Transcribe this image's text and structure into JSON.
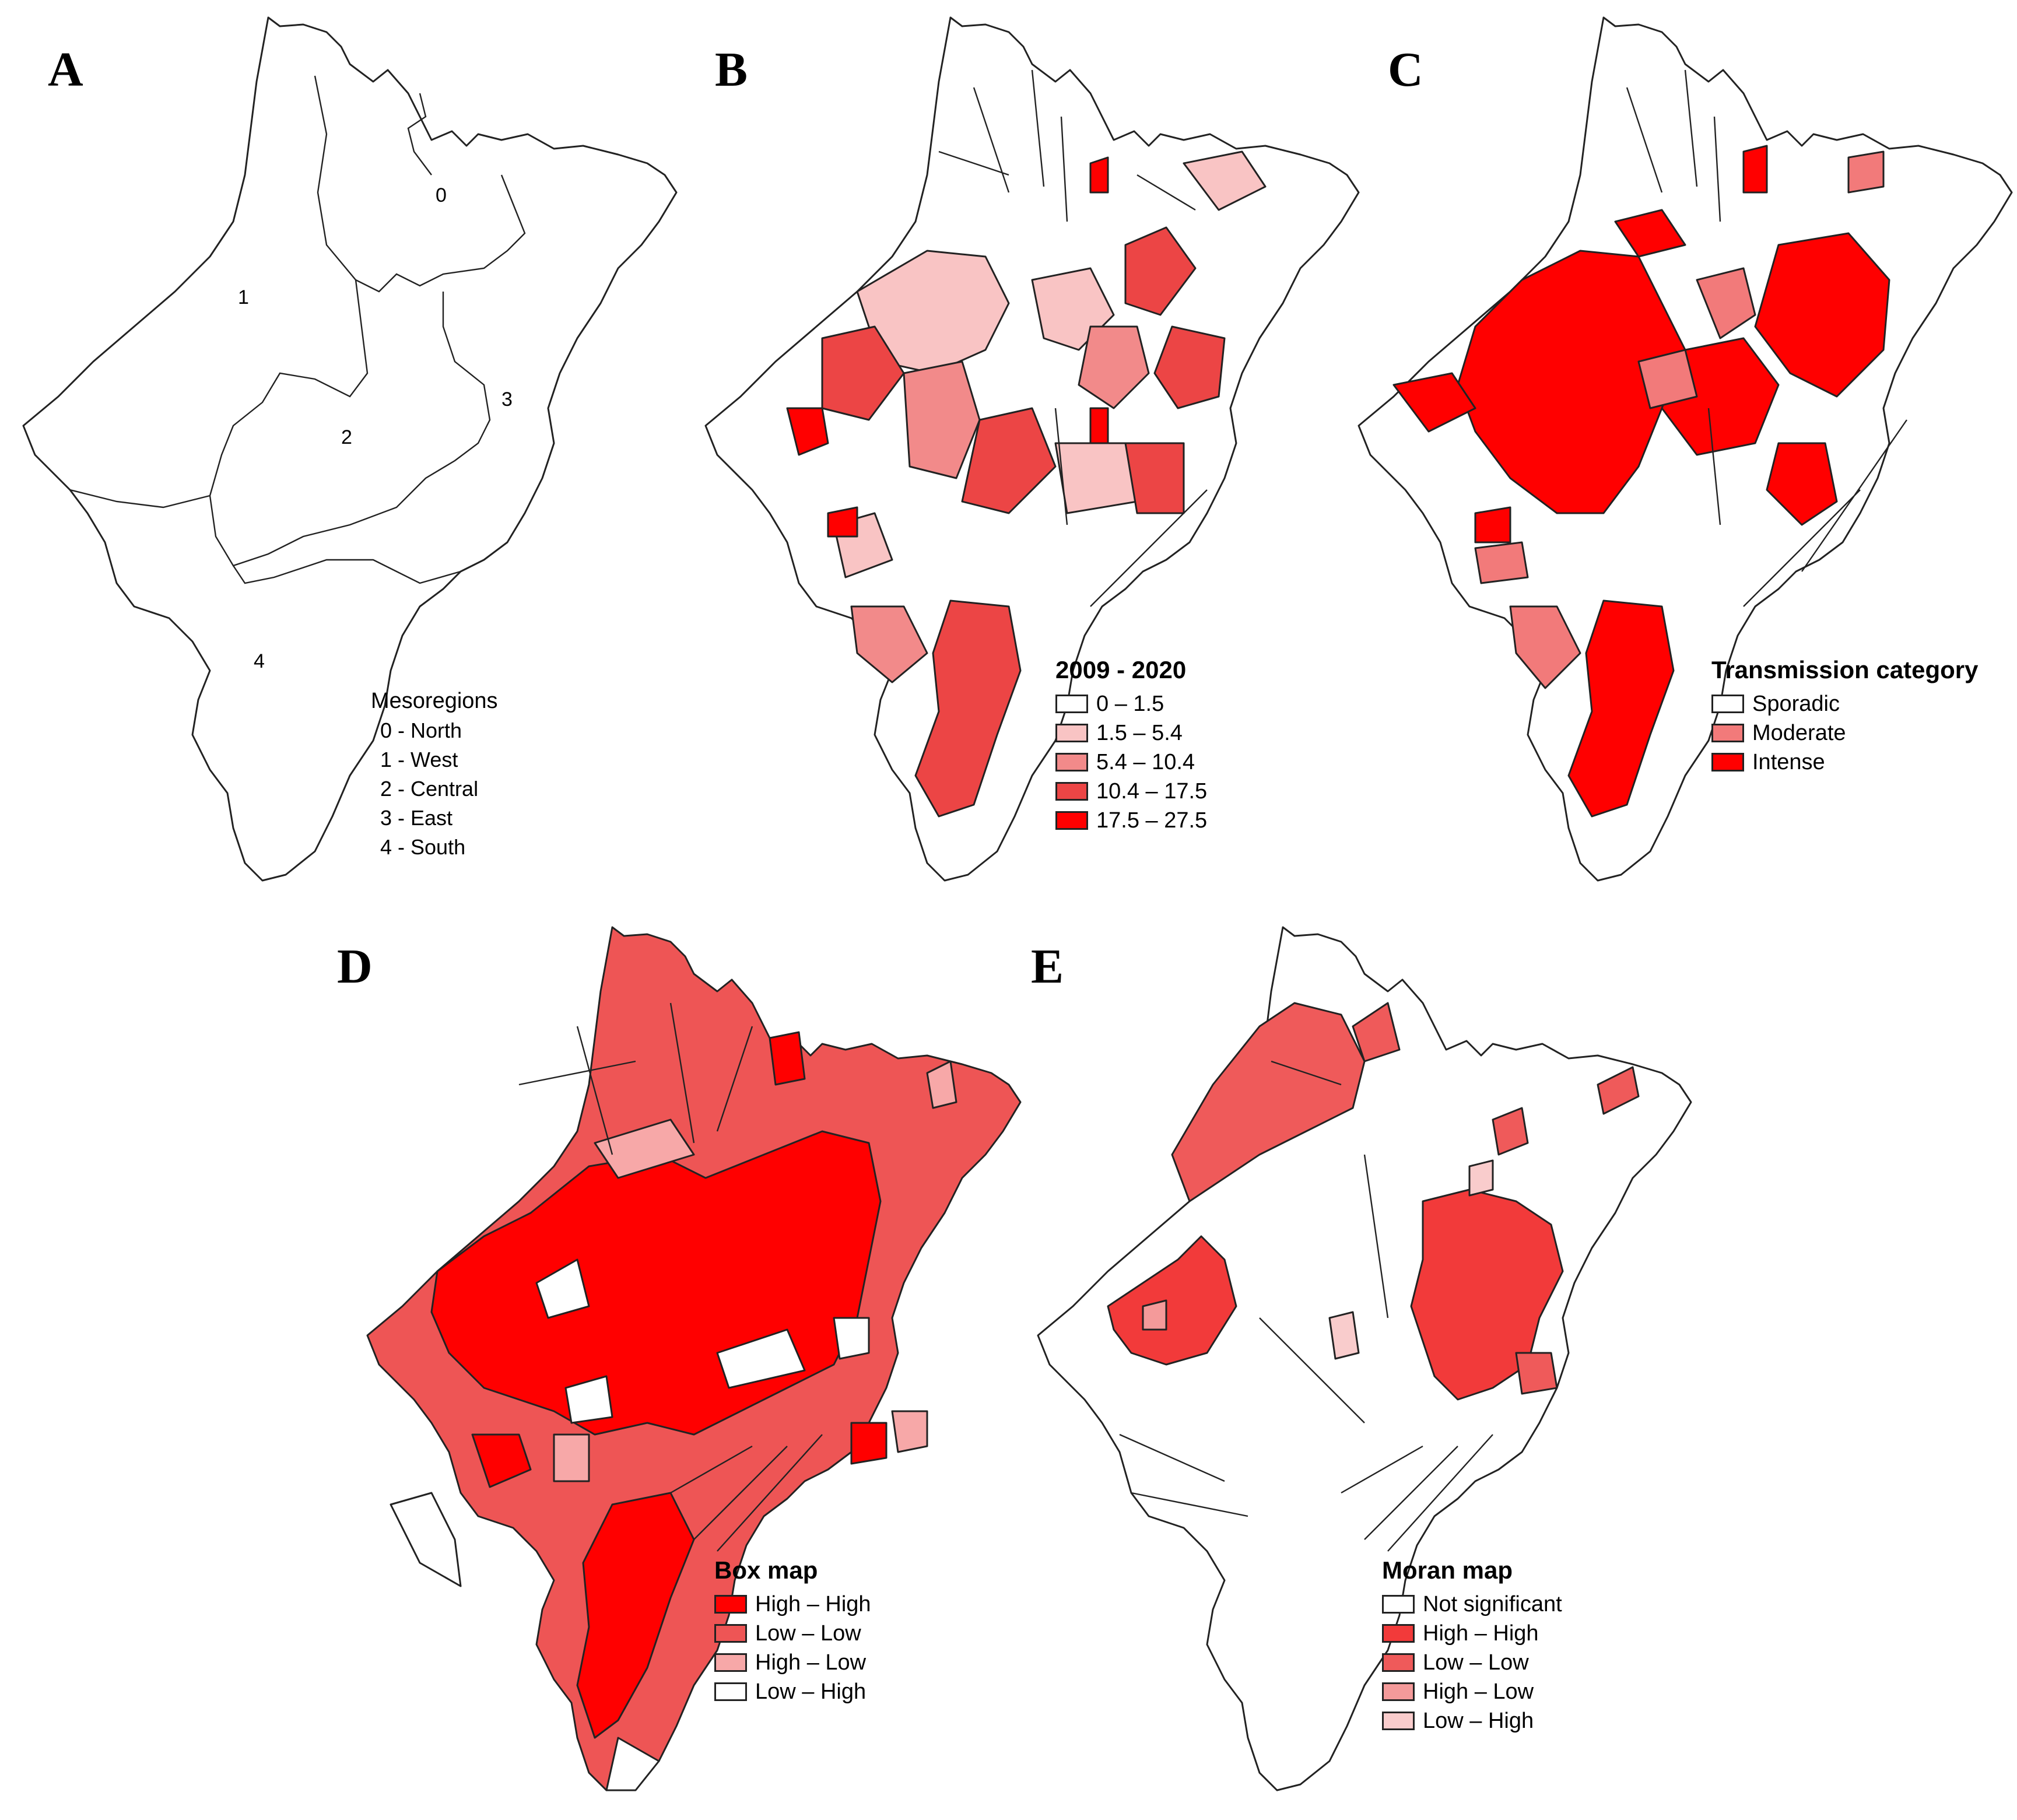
{
  "panels": {
    "a": {
      "letter": "A",
      "region_numbers": [
        "0",
        "1",
        "2",
        "3",
        "4"
      ],
      "legend": {
        "title": "Mesoregions",
        "items": [
          "0 - North",
          "1 - West",
          "2 - Central",
          "3 - East",
          "4 - South"
        ]
      }
    },
    "b": {
      "letter": "B",
      "legend": {
        "title": "2009 - 2020",
        "items": [
          {
            "label": "0 –  1.5",
            "color": "#ffffff"
          },
          {
            "label": "1.5 –  5.4",
            "color": "#f9c4c4"
          },
          {
            "label": "5.4 –  10.4",
            "color": "#f28a8a"
          },
          {
            "label": "10.4 –  17.5",
            "color": "#ec4545"
          },
          {
            "label": "17.5 –  27.5",
            "color": "#ff0000"
          }
        ]
      }
    },
    "c": {
      "letter": "C",
      "legend": {
        "title": "Transmission category",
        "items": [
          {
            "label": "Sporadic",
            "color": "#ffffff"
          },
          {
            "label": "Moderate",
            "color": "#f27a7a"
          },
          {
            "label": "Intense",
            "color": "#ff0000"
          }
        ]
      }
    },
    "d": {
      "letter": "D",
      "legend": {
        "title": "Box map",
        "items": [
          {
            "label": "High  –  High",
            "color": "#ff0000"
          },
          {
            "label": "Low  –  Low",
            "color": "#ee5555"
          },
          {
            "label": "High  –  Low",
            "color": "#f7a8a8"
          },
          {
            "label": "Low  –  High",
            "color": "#ffffff"
          }
        ]
      }
    },
    "e": {
      "letter": "E",
      "legend": {
        "title": "Moran map",
        "items": [
          {
            "label": "Not significant",
            "color": "#ffffff"
          },
          {
            "label": "High  –  High",
            "color": "#f23a3a"
          },
          {
            "label": "Low  –  Low",
            "color": "#ef5a5a"
          },
          {
            "label": "High  –  Low",
            "color": "#f49a9a"
          },
          {
            "label": "Low  –  High",
            "color": "#f9cccc"
          }
        ]
      }
    }
  }
}
